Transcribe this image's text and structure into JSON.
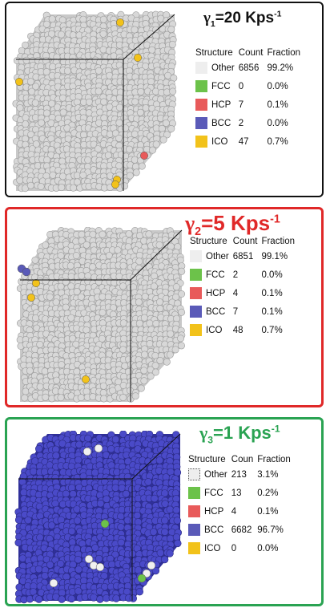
{
  "colors": {
    "other": "#eeeeee",
    "fcc": "#6cc24a",
    "hcp": "#e85a5a",
    "bcc": "#5a5ab8",
    "ico": "#f2c21a",
    "atom_grey": "#d8d8d8",
    "atom_blue": "#4a4ac8"
  },
  "panels": [
    {
      "title_symbol": "γ",
      "title_sub": "1",
      "title_rest": "=20 Kps",
      "title_sup": "-1",
      "title_color": "#111111",
      "headers": [
        "Structure",
        "Count",
        "Fraction"
      ],
      "rows": [
        {
          "name": "Other",
          "count": "6856",
          "fraction": "99.2%"
        },
        {
          "name": "FCC",
          "count": "0",
          "fraction": "0.0%"
        },
        {
          "name": "HCP",
          "count": "7",
          "fraction": "0.1%"
        },
        {
          "name": "BCC",
          "count": "2",
          "fraction": "0.0%"
        },
        {
          "name": "ICO",
          "count": "47",
          "fraction": "0.7%"
        }
      ]
    },
    {
      "title_symbol": "γ",
      "title_sub": "2",
      "title_rest": "=5 Kps",
      "title_sup": "-1",
      "title_color": "#e02828",
      "headers": [
        "Structure",
        "Count",
        "Fraction"
      ],
      "rows": [
        {
          "name": "Other",
          "count": "6851",
          "fraction": "99.1%"
        },
        {
          "name": "FCC",
          "count": "2",
          "fraction": "0.0%"
        },
        {
          "name": "HCP",
          "count": "4",
          "fraction": "0.1%"
        },
        {
          "name": "BCC",
          "count": "7",
          "fraction": "0.1%"
        },
        {
          "name": "ICO",
          "count": "48",
          "fraction": "0.7%"
        }
      ]
    },
    {
      "title_symbol": "γ",
      "title_sub": "3",
      "title_rest": "=1 Kps",
      "title_sup": "-1",
      "title_color": "#2aa352",
      "headers": [
        "Structure",
        "Coun",
        "Fraction"
      ],
      "rows": [
        {
          "name": "Other",
          "count": "213",
          "fraction": "3.1%"
        },
        {
          "name": "FCC",
          "count": "13",
          "fraction": "0.2%"
        },
        {
          "name": "HCP",
          "count": "4",
          "fraction": "0.1%"
        },
        {
          "name": "BCC",
          "count": "6682",
          "fraction": "96.7%"
        },
        {
          "name": "ICO",
          "count": "0",
          "fraction": "0.0%"
        }
      ]
    }
  ]
}
